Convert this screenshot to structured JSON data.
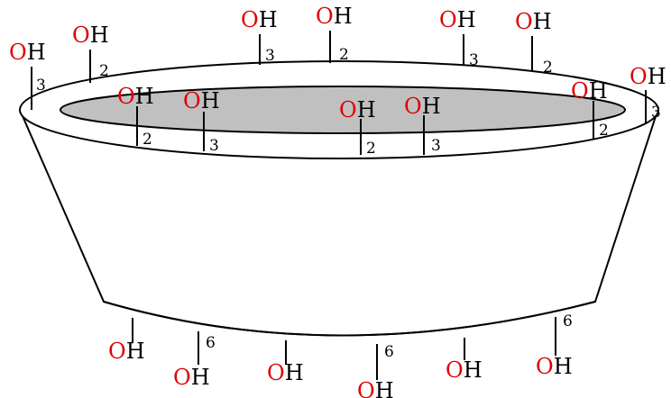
{
  "diagram": {
    "oxygen_symbol": "O",
    "hydrogen_symbol": "H",
    "colors": {
      "oxygen": "#e00000",
      "hydrogen": "#000000",
      "cavity_fill": "#c0c0c0",
      "body_fill": "#ffffff",
      "outline": "#000000"
    },
    "rim_outer_hydroxyls": [
      "3",
      "2",
      "3",
      "2",
      "3",
      "2",
      "3"
    ],
    "rim_inner_hydroxyls": [
      "2",
      "3",
      "2",
      "3",
      "2"
    ],
    "base_hydroxyls": [
      "",
      "6",
      "",
      "6",
      "",
      "6"
    ]
  }
}
